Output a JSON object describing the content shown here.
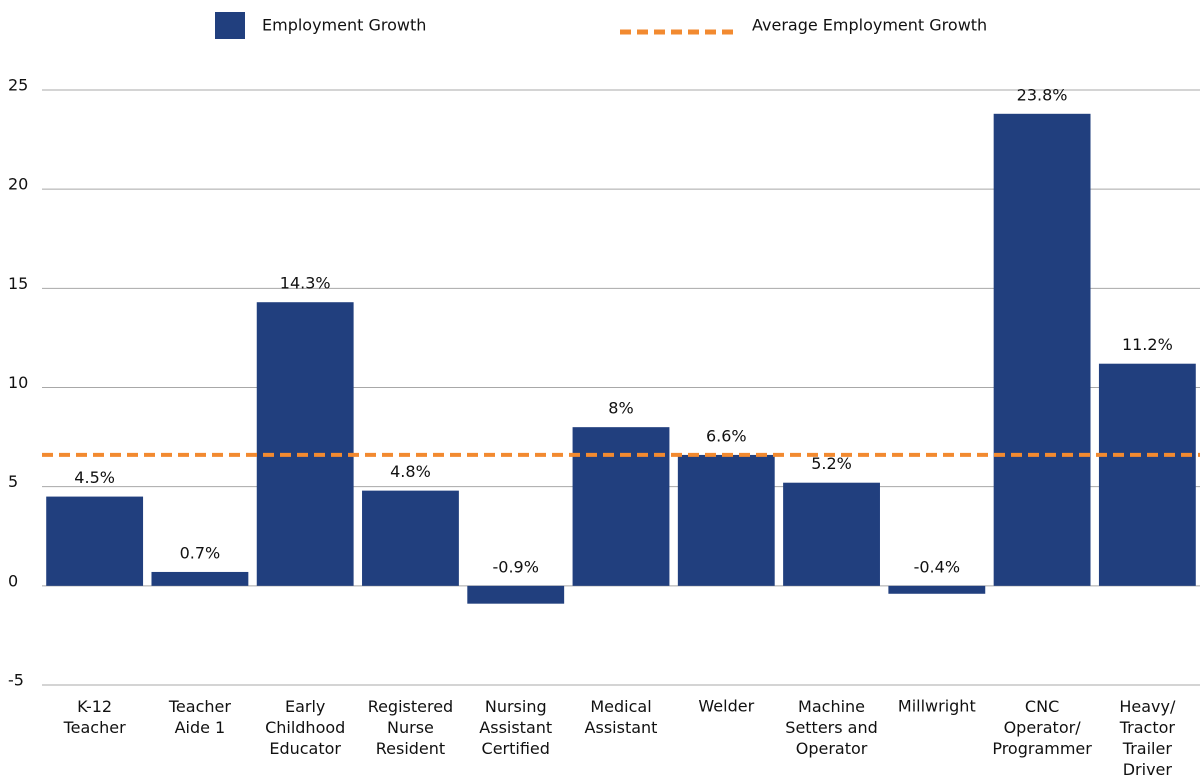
{
  "chart_data": {
    "type": "bar",
    "categories": [
      "K-12\nTeacher",
      "Teacher\nAide 1",
      "Early\nChildhood\nEducator",
      "Registered\nNurse\nResident",
      "Nursing\nAssistant\nCertified",
      "Medical\nAssistant",
      "Welder",
      "Machine\nSetters and\nOperator",
      "Millwright",
      "CNC\nOperator/\nProgrammer",
      "Heavy/\nTractor\nTrailer\nDriver"
    ],
    "series": [
      {
        "name": "Employment Growth",
        "color": "#213f7e",
        "values": [
          4.5,
          0.7,
          14.3,
          4.8,
          -0.9,
          8,
          6.6,
          5.2,
          -0.4,
          23.8,
          11.2
        ],
        "value_labels": [
          "4.5%",
          "0.7%",
          "14.3%",
          "4.8%",
          "-0.9%",
          "8%",
          "6.6%",
          "5.2%",
          "-0.4%",
          "23.8%",
          "11.2%"
        ]
      }
    ],
    "average": {
      "name": "Average Employment Growth",
      "value": 6.6,
      "color": "#f28a30"
    },
    "ylim": [
      -5,
      25
    ],
    "yticks": [
      -5,
      0,
      5,
      10,
      15,
      20,
      25
    ],
    "grid": true
  }
}
